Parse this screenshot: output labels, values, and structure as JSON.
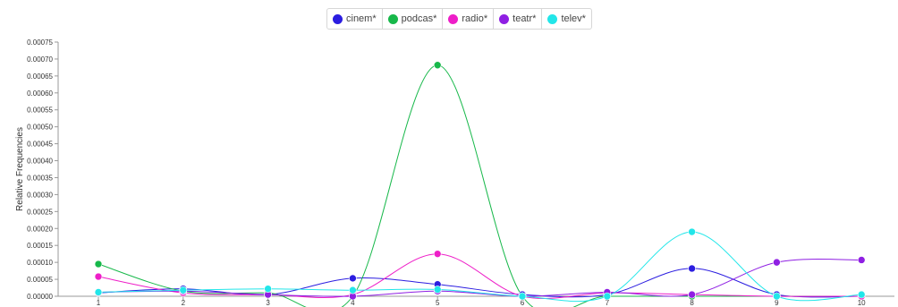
{
  "chart_data": {
    "type": "line",
    "ylabel": "Relative Frequencies",
    "xlabel": "",
    "x": [
      1,
      2,
      3,
      4,
      5,
      6,
      7,
      8,
      9,
      10
    ],
    "x_tick_labels": [
      "1",
      "2",
      "3",
      "4",
      "5",
      "6",
      "7",
      "8",
      "9",
      "10"
    ],
    "ylim": [
      0,
      0.00075
    ],
    "y_tick_labels": [
      "0.00000",
      "0.00005",
      "0.00010",
      "0.00015",
      "0.00020",
      "0.00025",
      "0.00030",
      "0.00035",
      "0.00040",
      "0.00045",
      "0.00050",
      "0.00055",
      "0.00060",
      "0.00065",
      "0.00070",
      "0.00075"
    ],
    "legend_position": "top-center",
    "series": [
      {
        "name": "cinem*",
        "color": "#2b1de0",
        "values": [
          1e-05,
          2.2e-05,
          5e-06,
          5.3e-05,
          3.5e-05,
          5e-06,
          5e-06,
          8.2e-05,
          5e-06,
          0.0
        ]
      },
      {
        "name": "podcas*",
        "color": "#17b84a",
        "values": [
          9.5e-05,
          1.5e-05,
          1e-05,
          0.0,
          0.000682,
          0.0,
          0.0,
          0.0,
          0.0,
          0.0
        ]
      },
      {
        "name": "radio*",
        "color": "#ee1ec8",
        "values": [
          5.8e-05,
          1e-05,
          5e-06,
          5e-06,
          0.000125,
          0.0,
          1e-05,
          5e-06,
          0.0,
          0.0
        ]
      },
      {
        "name": "teatr*",
        "color": "#8f1fe3",
        "values": [
          1.2e-05,
          1.5e-05,
          5e-06,
          0.0,
          1.5e-05,
          0.0,
          1.2e-05,
          5e-06,
          0.0001,
          0.000107
        ]
      },
      {
        "name": "telev*",
        "color": "#22e6e9",
        "values": [
          1.2e-05,
          1.8e-05,
          2.2e-05,
          1.8e-05,
          2e-05,
          0.0,
          0.0,
          0.00019,
          0.0,
          5e-06
        ]
      }
    ]
  }
}
